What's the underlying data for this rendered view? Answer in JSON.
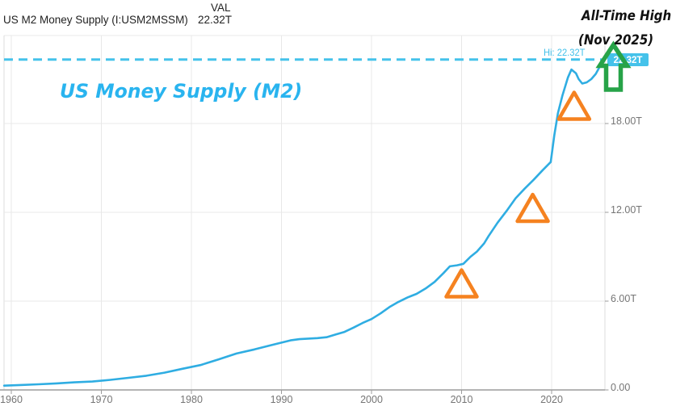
{
  "header": {
    "title": "US M2 Money Supply (I:USM2MSSM)",
    "val_label": "VAL",
    "val_value": "22.32T"
  },
  "watermark_title": "US Money Supply (M2)",
  "annotation_text": {
    "line1": "All-Time High",
    "line2": "(Nov 2025)"
  },
  "hi_line": {
    "label": "Hi: 22.32T",
    "badge": "22.32T",
    "value": 22.32
  },
  "colors": {
    "line": "#2fadE2",
    "hi": "#45c2ea",
    "title_watermark": "#29b4ef",
    "triangle": "#f58220",
    "arrow": "#27a348",
    "grid": "#e8e8e8",
    "border": "#dcdcdc",
    "axis": "#9b9b9b",
    "label": "#757575",
    "badge_text": "#ffffff"
  },
  "chart_data": {
    "type": "line",
    "title": "US Money Supply (M2)",
    "unit": "USD trillions (T)",
    "xlim": [
      1959.2,
      2026.1
    ],
    "ylim": [
      0,
      24
    ],
    "grid": true,
    "legend": "none",
    "hi_value": 22.32,
    "hi_label": "Hi: 22.32T",
    "x_ticks": [
      {
        "label": "1960",
        "year": 1960
      },
      {
        "label": "1970",
        "year": 1970
      },
      {
        "label": "1980",
        "year": 1980
      },
      {
        "label": "1990",
        "year": 1990
      },
      {
        "label": "2000",
        "year": 2000
      },
      {
        "label": "2010",
        "year": 2010
      },
      {
        "label": "2020",
        "year": 2020
      }
    ],
    "y_ticks": [
      {
        "label": "18.00T",
        "value": 18
      },
      {
        "label": "12.00T",
        "value": 12
      },
      {
        "label": "6.00T",
        "value": 6
      },
      {
        "label": "0.00",
        "value": 0
      }
    ],
    "series": [
      {
        "name": "US M2 Money Supply",
        "points": [
          [
            1959.2,
            0.29
          ],
          [
            1961,
            0.33
          ],
          [
            1963,
            0.38
          ],
          [
            1965,
            0.44
          ],
          [
            1967,
            0.51
          ],
          [
            1969,
            0.57
          ],
          [
            1971,
            0.68
          ],
          [
            1973,
            0.82
          ],
          [
            1975,
            0.96
          ],
          [
            1977,
            1.17
          ],
          [
            1979,
            1.43
          ],
          [
            1981,
            1.68
          ],
          [
            1983,
            2.06
          ],
          [
            1985,
            2.46
          ],
          [
            1987,
            2.74
          ],
          [
            1989,
            3.05
          ],
          [
            1991,
            3.35
          ],
          [
            1992,
            3.43
          ],
          [
            1993,
            3.47
          ],
          [
            1994,
            3.5
          ],
          [
            1995,
            3.56
          ],
          [
            1996,
            3.74
          ],
          [
            1997,
            3.92
          ],
          [
            1998,
            4.21
          ],
          [
            1999,
            4.52
          ],
          [
            2000,
            4.79
          ],
          [
            2001,
            5.17
          ],
          [
            2002,
            5.6
          ],
          [
            2003,
            5.95
          ],
          [
            2004,
            6.25
          ],
          [
            2005,
            6.49
          ],
          [
            2006,
            6.85
          ],
          [
            2007,
            7.3
          ],
          [
            2008,
            7.9
          ],
          [
            2008.7,
            8.35
          ],
          [
            2009.5,
            8.42
          ],
          [
            2010.2,
            8.52
          ],
          [
            2011,
            9.0
          ],
          [
            2011.7,
            9.35
          ],
          [
            2012.5,
            9.9
          ],
          [
            2013,
            10.4
          ],
          [
            2014,
            11.3
          ],
          [
            2015,
            12.1
          ],
          [
            2016,
            12.95
          ],
          [
            2017,
            13.6
          ],
          [
            2018,
            14.2
          ],
          [
            2019,
            14.85
          ],
          [
            2019.9,
            15.4
          ],
          [
            2020.3,
            17.2
          ],
          [
            2020.7,
            18.7
          ],
          [
            2021.2,
            19.9
          ],
          [
            2021.8,
            21.1
          ],
          [
            2022.2,
            21.65
          ],
          [
            2022.7,
            21.4
          ],
          [
            2023.0,
            21.0
          ],
          [
            2023.4,
            20.7
          ],
          [
            2023.9,
            20.78
          ],
          [
            2024.4,
            21.0
          ],
          [
            2024.9,
            21.35
          ],
          [
            2025.4,
            21.9
          ],
          [
            2025.9,
            22.32
          ]
        ]
      }
    ],
    "annotations": {
      "triangles": [
        {
          "year": 2010.0,
          "value": 7.2
        },
        {
          "year": 2017.9,
          "value": 12.3
        },
        {
          "year": 2022.5,
          "value": 19.2
        }
      ],
      "arrow_note": "green up-arrow at series end pointing to all-time high"
    }
  }
}
